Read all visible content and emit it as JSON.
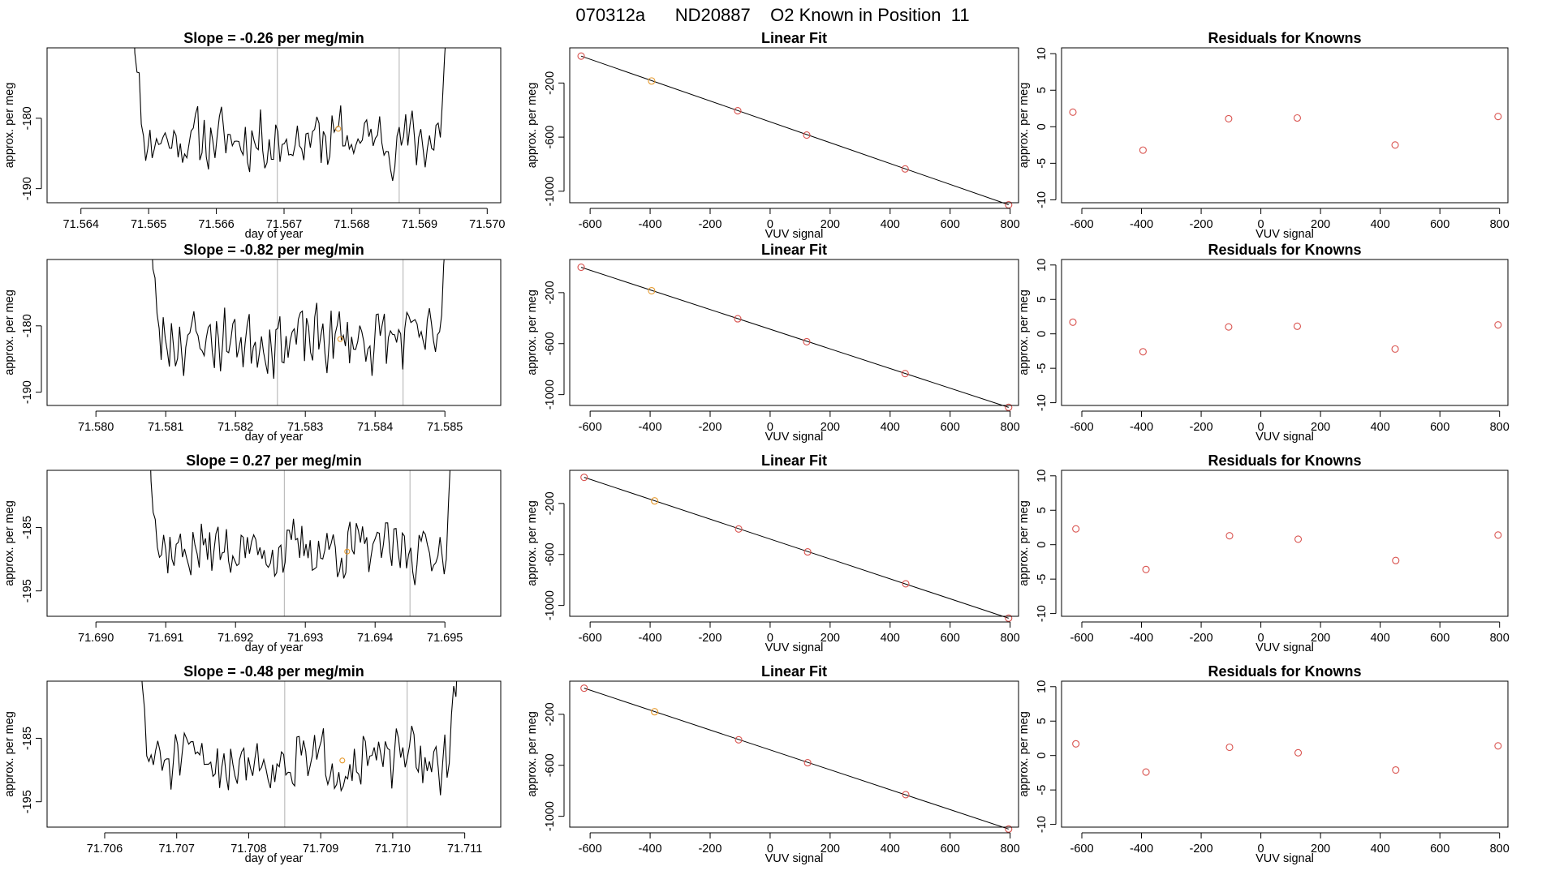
{
  "figure": {
    "main_title": "070312a      ND20887    O2 Known in Position  11"
  },
  "colors": {
    "line": "#000000",
    "box": "#000000",
    "gridline": "#bdbdbd",
    "point": "#d9534f",
    "point_highlight": "#e69a2e"
  },
  "chart_data": [
    {
      "panel": "timeseries",
      "row": 0,
      "type": "line",
      "title": "Slope =  -0.26  per meg/min",
      "xlabel": "day of year",
      "ylabel": "approx. per meg",
      "xlim": [
        71.5635,
        71.5702
      ],
      "ylim": [
        -192,
        -170
      ],
      "xticks": [
        71.564,
        71.565,
        71.566,
        71.567,
        71.568,
        71.569,
        71.57
      ],
      "xtick_labels": [
        "71.564",
        "71.565",
        "71.566",
        "71.567",
        "71.568",
        "71.569",
        "71.570"
      ],
      "yticks": [
        -180,
        -190
      ],
      "ytick_labels": [
        "-180",
        "-190"
      ],
      "vlines": [
        71.5669,
        71.5687
      ],
      "series": {
        "x_start": 71.5647,
        "x_end": 71.5695,
        "base": -183,
        "amp": 2.5,
        "seed": 11
      },
      "marker": {
        "x": 71.5678,
        "y": -181.5
      }
    },
    {
      "panel": "linear_fit",
      "row": 0,
      "type": "scatter",
      "title": "Linear Fit",
      "xlabel": "VUV signal",
      "ylabel": "approx. per meg",
      "xlim": [
        -668,
        828
      ],
      "ylim": [
        -1085,
        60
      ],
      "xticks": [
        -600,
        -400,
        -200,
        0,
        200,
        400,
        600,
        800
      ],
      "xtick_labels": [
        "-600",
        "-400",
        "-200",
        "0",
        "200",
        "400",
        "600",
        "800"
      ],
      "yticks": [
        -200,
        -600,
        -1000
      ],
      "ytick_labels": [
        "-200",
        "-600",
        "-1000"
      ],
      "points": {
        "x": [
          -630,
          -395,
          -108,
          122,
          450,
          795
        ],
        "y": [
          -1,
          -185,
          -405,
          -585,
          -835,
          -1100
        ]
      },
      "highlight_index": 1,
      "fit": {
        "x": [
          -630,
          795
        ],
        "y": [
          -1,
          -1100
        ]
      }
    },
    {
      "panel": "residuals",
      "row": 0,
      "type": "scatter",
      "title": "Residuals for Knowns",
      "xlabel": "VUV signal",
      "ylabel": "approx. per meg",
      "xlim": [
        -668,
        828
      ],
      "ylim": [
        -10.4,
        10.8
      ],
      "xticks": [
        -600,
        -400,
        -200,
        0,
        200,
        400,
        600,
        800
      ],
      "xtick_labels": [
        "-600",
        "-400",
        "-200",
        "0",
        "200",
        "400",
        "600",
        "800"
      ],
      "yticks": [
        10,
        5,
        0,
        -5,
        -10
      ],
      "ytick_labels": [
        "10",
        "5",
        "0",
        "-5",
        "-10"
      ],
      "points": {
        "x": [
          -630,
          -395,
          -108,
          122,
          450,
          795
        ],
        "y": [
          2.0,
          -3.2,
          1.1,
          1.2,
          -2.5,
          1.4
        ]
      }
    },
    {
      "panel": "timeseries",
      "row": 1,
      "type": "line",
      "title": "Slope =  -0.82  per meg/min",
      "xlabel": "day of year",
      "ylabel": "approx. per meg",
      "xlim": [
        71.5793,
        71.5858
      ],
      "ylim": [
        -192,
        -170
      ],
      "xticks": [
        71.58,
        71.581,
        71.582,
        71.583,
        71.584,
        71.585
      ],
      "xtick_labels": [
        "71.580",
        "71.581",
        "71.582",
        "71.583",
        "71.584",
        "71.585"
      ],
      "yticks": [
        -180,
        -190
      ],
      "ytick_labels": [
        "-180",
        "-190"
      ],
      "vlines": [
        71.5826,
        71.5844
      ],
      "series": {
        "x_start": 71.5807,
        "x_end": 71.5851,
        "base": -182,
        "amp": 2.8,
        "seed": 23
      },
      "marker": {
        "x": 71.5835,
        "y": -182
      }
    },
    {
      "panel": "linear_fit",
      "row": 1,
      "type": "scatter",
      "title": "Linear Fit",
      "xlabel": "VUV signal",
      "ylabel": "approx. per meg",
      "xlim": [
        -668,
        828
      ],
      "ylim": [
        -1085,
        60
      ],
      "xticks": [
        -600,
        -400,
        -200,
        0,
        200,
        400,
        600,
        800
      ],
      "xtick_labels": [
        "-600",
        "-400",
        "-200",
        "0",
        "200",
        "400",
        "600",
        "800"
      ],
      "yticks": [
        -200,
        -600,
        -1000
      ],
      "ytick_labels": [
        "-200",
        "-600",
        "-1000"
      ],
      "points": {
        "x": [
          -630,
          -395,
          -108,
          122,
          450,
          795
        ],
        "y": [
          -1,
          -185,
          -405,
          -585,
          -835,
          -1100
        ]
      },
      "highlight_index": 1,
      "fit": {
        "x": [
          -630,
          795
        ],
        "y": [
          -1,
          -1100
        ]
      }
    },
    {
      "panel": "residuals",
      "row": 1,
      "type": "scatter",
      "title": "Residuals for Knowns",
      "xlabel": "VUV signal",
      "ylabel": "approx. per meg",
      "xlim": [
        -668,
        828
      ],
      "ylim": [
        -10.4,
        10.8
      ],
      "xticks": [
        -600,
        -400,
        -200,
        0,
        200,
        400,
        600,
        800
      ],
      "xtick_labels": [
        "-600",
        "-400",
        "-200",
        "0",
        "200",
        "400",
        "600",
        "800"
      ],
      "yticks": [
        10,
        5,
        0,
        -5,
        -10
      ],
      "ytick_labels": [
        "10",
        "5",
        "0",
        "-5",
        "-10"
      ],
      "points": {
        "x": [
          -630,
          -395,
          -108,
          122,
          450,
          795
        ],
        "y": [
          1.7,
          -2.6,
          1.0,
          1.1,
          -2.2,
          1.3
        ]
      }
    },
    {
      "panel": "timeseries",
      "row": 2,
      "type": "line",
      "title": "Slope =  0.27  per meg/min",
      "xlabel": "day of year",
      "ylabel": "approx. per meg",
      "xlim": [
        71.6893,
        71.6958
      ],
      "ylim": [
        -199,
        -176
      ],
      "xticks": [
        71.69,
        71.691,
        71.692,
        71.693,
        71.694,
        71.695
      ],
      "xtick_labels": [
        "71.690",
        "71.691",
        "71.692",
        "71.693",
        "71.694",
        "71.695"
      ],
      "yticks": [
        -185,
        -195
      ],
      "ytick_labels": [
        "-185",
        "-195"
      ],
      "vlines": [
        71.6927,
        71.6945
      ],
      "series": {
        "x_start": 71.6907,
        "x_end": 71.6952,
        "base": -188.5,
        "amp": 2.6,
        "seed": 37
      },
      "marker": {
        "x": 71.6936,
        "y": -188.8
      }
    },
    {
      "panel": "linear_fit",
      "row": 2,
      "type": "scatter",
      "title": "Linear Fit",
      "xlabel": "VUV signal",
      "ylabel": "approx. per meg",
      "xlim": [
        -668,
        828
      ],
      "ylim": [
        -1085,
        60
      ],
      "xticks": [
        -600,
        -400,
        -200,
        0,
        200,
        400,
        600,
        800
      ],
      "xtick_labels": [
        "-600",
        "-400",
        "-200",
        "0",
        "200",
        "400",
        "600",
        "800"
      ],
      "yticks": [
        -200,
        -600,
        -1000
      ],
      "ytick_labels": [
        "-200",
        "-600",
        "-1000"
      ],
      "points": {
        "x": [
          -620,
          -385,
          -105,
          125,
          452,
          795
        ],
        "y": [
          5,
          -180,
          -400,
          -580,
          -830,
          -1100
        ]
      },
      "highlight_index": 1,
      "fit": {
        "x": [
          -620,
          795
        ],
        "y": [
          5,
          -1100
        ]
      }
    },
    {
      "panel": "residuals",
      "row": 2,
      "type": "scatter",
      "title": "Residuals for Knowns",
      "xlabel": "VUV signal",
      "ylabel": "approx. per meg",
      "xlim": [
        -668,
        828
      ],
      "ylim": [
        -10.4,
        10.8
      ],
      "xticks": [
        -600,
        -400,
        -200,
        0,
        200,
        400,
        600,
        800
      ],
      "xtick_labels": [
        "-600",
        "-400",
        "-200",
        "0",
        "200",
        "400",
        "600",
        "800"
      ],
      "yticks": [
        10,
        5,
        0,
        -5,
        -10
      ],
      "ytick_labels": [
        "10",
        "5",
        "0",
        "-5",
        "-10"
      ],
      "points": {
        "x": [
          -620,
          -385,
          -105,
          125,
          452,
          795
        ],
        "y": [
          2.3,
          -3.6,
          1.3,
          0.8,
          -2.3,
          1.4
        ]
      }
    },
    {
      "panel": "timeseries",
      "row": 3,
      "type": "line",
      "title": "Slope =  -0.48  per meg/min",
      "xlabel": "day of year",
      "ylabel": "approx. per meg",
      "xlim": [
        71.7052,
        71.7115
      ],
      "ylim": [
        -199,
        -176
      ],
      "xticks": [
        71.706,
        71.707,
        71.708,
        71.709,
        71.71,
        71.711
      ],
      "xtick_labels": [
        "71.706",
        "71.707",
        "71.708",
        "71.709",
        "71.710",
        "71.711"
      ],
      "yticks": [
        -185,
        -195
      ],
      "ytick_labels": [
        "-185",
        "-195"
      ],
      "vlines": [
        71.7085,
        71.7102
      ],
      "series": {
        "x_start": 71.7064,
        "x_end": 71.711,
        "base": -188.5,
        "amp": 2.7,
        "seed": 51
      },
      "marker": {
        "x": 71.7093,
        "y": -188.5
      }
    },
    {
      "panel": "linear_fit",
      "row": 3,
      "type": "scatter",
      "title": "Linear Fit",
      "xlabel": "VUV signal",
      "ylabel": "approx. per meg",
      "xlim": [
        -668,
        828
      ],
      "ylim": [
        -1085,
        60
      ],
      "xticks": [
        -600,
        -400,
        -200,
        0,
        200,
        400,
        600,
        800
      ],
      "xtick_labels": [
        "-600",
        "-400",
        "-200",
        "0",
        "200",
        "400",
        "600",
        "800"
      ],
      "yticks": [
        -200,
        -600,
        -1000
      ],
      "ytick_labels": [
        "-200",
        "-600",
        "-1000"
      ],
      "points": {
        "x": [
          -620,
          -385,
          -105,
          125,
          452,
          795
        ],
        "y": [
          5,
          -180,
          -400,
          -580,
          -830,
          -1100
        ]
      },
      "highlight_index": 1,
      "fit": {
        "x": [
          -620,
          795
        ],
        "y": [
          5,
          -1100
        ]
      }
    },
    {
      "panel": "residuals",
      "row": 3,
      "type": "scatter",
      "title": "Residuals for Knowns",
      "xlabel": "VUV signal",
      "ylabel": "approx. per meg",
      "xlim": [
        -668,
        828
      ],
      "ylim": [
        -10.4,
        10.8
      ],
      "xticks": [
        -600,
        -400,
        -200,
        0,
        200,
        400,
        600,
        800
      ],
      "xtick_labels": [
        "-600",
        "-400",
        "-200",
        "0",
        "200",
        "400",
        "600",
        "800"
      ],
      "yticks": [
        10,
        5,
        0,
        -5,
        -10
      ],
      "ytick_labels": [
        "10",
        "5",
        "0",
        "-5",
        "-10"
      ],
      "points": {
        "x": [
          -620,
          -385,
          -105,
          125,
          452,
          795
        ],
        "y": [
          1.7,
          -2.4,
          1.2,
          0.4,
          -2.1,
          1.4
        ]
      }
    }
  ]
}
